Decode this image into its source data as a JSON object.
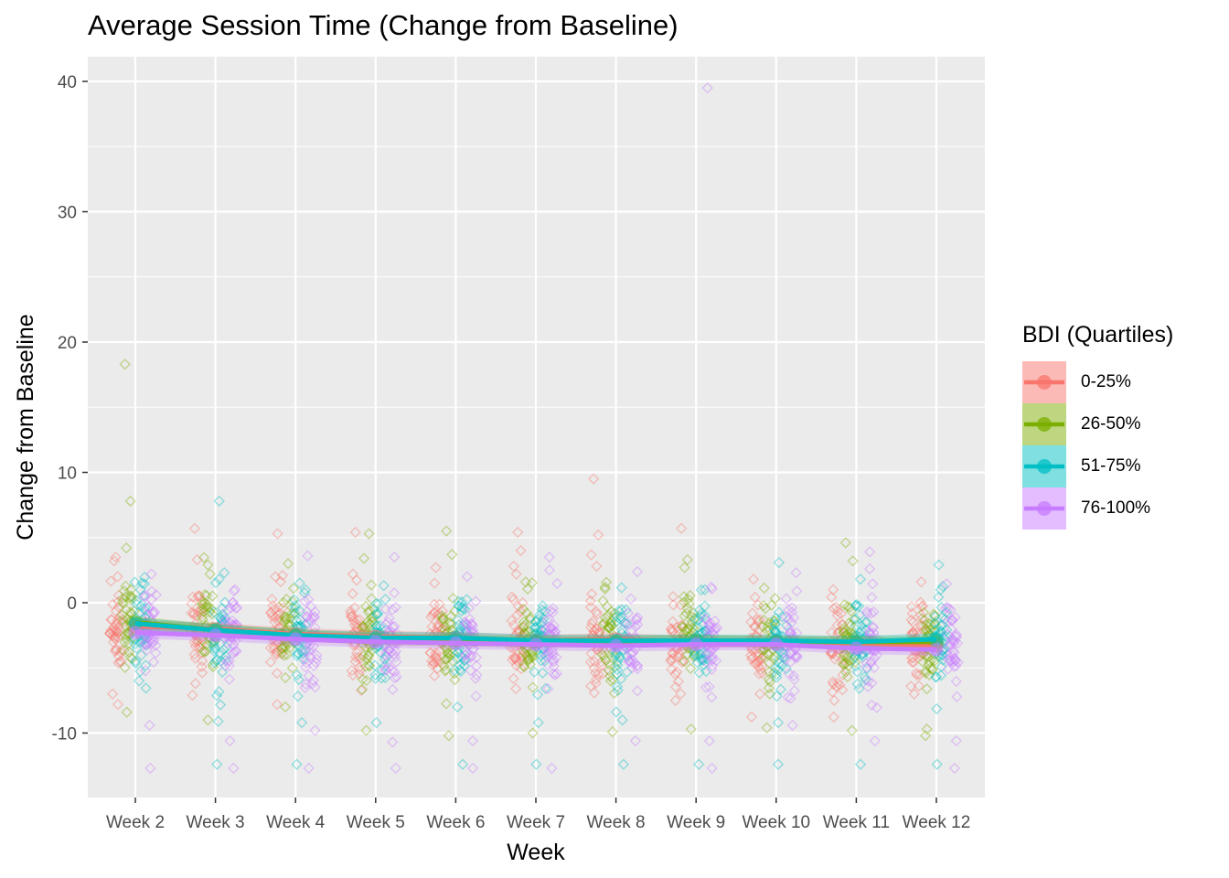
{
  "chart_data": {
    "type": "line",
    "title": "Average Session Time (Change from Baseline)",
    "xlabel": "Week",
    "ylabel": "Change from Baseline",
    "categories": [
      "Week 2",
      "Week 3",
      "Week 4",
      "Week 5",
      "Week 6",
      "Week 7",
      "Week 8",
      "Week 9",
      "Week 10",
      "Week 11",
      "Week 12"
    ],
    "yticks": [
      -10,
      0,
      10,
      20,
      30,
      40
    ],
    "ylim": [
      -15.2,
      41.8
    ],
    "grid": true,
    "legend": {
      "title": "BDI (Quartiles)",
      "position": "right"
    },
    "series": [
      {
        "name": "0-25%",
        "color": "#F8766D",
        "values": [
          -1.8,
          -2.0,
          -2.4,
          -2.6,
          -2.7,
          -2.9,
          -2.8,
          -3.0,
          -3.0,
          -3.1,
          -3.3
        ],
        "outliers": [
          [
            0,
            3.5
          ],
          [
            0,
            3.2
          ],
          [
            0,
            2.0
          ],
          [
            0,
            -7.0
          ],
          [
            0,
            -7.8
          ],
          [
            1,
            5.7
          ],
          [
            1,
            3.3
          ],
          [
            1,
            -6.2
          ],
          [
            1,
            -7.1
          ],
          [
            2,
            5.3
          ],
          [
            2,
            2.0
          ],
          [
            2,
            -7.8
          ],
          [
            3,
            5.4
          ],
          [
            3,
            2.2
          ],
          [
            4,
            2.7
          ],
          [
            4,
            1.5
          ],
          [
            5,
            5.4
          ],
          [
            5,
            4.0
          ],
          [
            5,
            2.8
          ],
          [
            6,
            9.5
          ],
          [
            6,
            5.2
          ],
          [
            6,
            2.8
          ],
          [
            7,
            5.7
          ],
          [
            7,
            -7.5
          ],
          [
            8,
            1.8
          ],
          [
            8,
            -7.0
          ],
          [
            9,
            1.0
          ],
          [
            9,
            -7.5
          ],
          [
            10,
            1.6
          ],
          [
            10,
            -7.0
          ]
        ]
      },
      {
        "name": "26-50%",
        "color": "#7CAE00",
        "values": [
          -1.5,
          -2.1,
          -2.5,
          -2.8,
          -2.9,
          -3.0,
          -3.0,
          -2.9,
          -3.0,
          -3.0,
          -3.0
        ],
        "outliers": [
          [
            0,
            18.3
          ],
          [
            0,
            7.8
          ],
          [
            0,
            4.2
          ],
          [
            0,
            -8.4
          ],
          [
            1,
            2.9
          ],
          [
            1,
            2.2
          ],
          [
            1,
            -9.0
          ],
          [
            2,
            3.0
          ],
          [
            2,
            -8.0
          ],
          [
            3,
            5.3
          ],
          [
            3,
            3.4
          ],
          [
            3,
            -9.8
          ],
          [
            4,
            5.5
          ],
          [
            4,
            3.7
          ],
          [
            4,
            -10.2
          ],
          [
            5,
            1.6
          ],
          [
            5,
            -10.0
          ],
          [
            6,
            1.2
          ],
          [
            6,
            -9.9
          ],
          [
            7,
            3.3
          ],
          [
            7,
            2.7
          ],
          [
            7,
            -9.7
          ],
          [
            8,
            -7.0
          ],
          [
            8,
            -9.6
          ],
          [
            9,
            4.6
          ],
          [
            9,
            3.2
          ],
          [
            9,
            -9.8
          ],
          [
            10,
            -9.7
          ],
          [
            10,
            -10.2
          ]
        ]
      },
      {
        "name": "51-75%",
        "color": "#00BFC4",
        "values": [
          -1.6,
          -2.1,
          -2.5,
          -2.7,
          -2.7,
          -2.9,
          -2.9,
          -2.9,
          -2.9,
          -3.0,
          -2.8
        ],
        "outliers": [
          [
            0,
            1.5
          ],
          [
            0,
            -6.0
          ],
          [
            1,
            7.8
          ],
          [
            1,
            2.3
          ],
          [
            1,
            -9.1
          ],
          [
            1,
            -12.4
          ],
          [
            2,
            -9.2
          ],
          [
            2,
            -12.4
          ],
          [
            3,
            -9.2
          ],
          [
            4,
            -8.0
          ],
          [
            4,
            -12.4
          ],
          [
            5,
            -9.2
          ],
          [
            5,
            -12.4
          ],
          [
            6,
            -9.0
          ],
          [
            6,
            -12.4
          ],
          [
            7,
            1.0
          ],
          [
            7,
            -12.4
          ],
          [
            8,
            -9.2
          ],
          [
            8,
            -12.4
          ],
          [
            9,
            1.8
          ],
          [
            9,
            -12.4
          ],
          [
            10,
            2.9
          ],
          [
            10,
            1.0
          ],
          [
            10,
            -12.4
          ]
        ]
      },
      {
        "name": "76-100%",
        "color": "#C77CFF",
        "values": [
          -2.3,
          -2.5,
          -2.8,
          -3.0,
          -3.1,
          -3.2,
          -3.3,
          -3.2,
          -3.2,
          -3.5,
          -3.6
        ],
        "outliers": [
          [
            0,
            2.2
          ],
          [
            0,
            -9.4
          ],
          [
            0,
            -12.7
          ],
          [
            1,
            1.0
          ],
          [
            1,
            -10.6
          ],
          [
            1,
            -12.7
          ],
          [
            2,
            3.6
          ],
          [
            2,
            -9.8
          ],
          [
            2,
            -12.7
          ],
          [
            3,
            3.5
          ],
          [
            3,
            -10.7
          ],
          [
            3,
            -12.7
          ],
          [
            4,
            2.0
          ],
          [
            4,
            -10.6
          ],
          [
            4,
            -12.7
          ],
          [
            5,
            3.5
          ],
          [
            5,
            2.5
          ],
          [
            5,
            -12.7
          ],
          [
            6,
            0.3
          ],
          [
            6,
            -10.6
          ],
          [
            7,
            39.5
          ],
          [
            7,
            1.2
          ],
          [
            7,
            -10.6
          ],
          [
            7,
            -12.7
          ],
          [
            8,
            2.3
          ],
          [
            8,
            -9.4
          ],
          [
            9,
            3.9
          ],
          [
            9,
            2.6
          ],
          [
            9,
            -10.6
          ],
          [
            10,
            -10.6
          ],
          [
            10,
            -12.7
          ]
        ]
      }
    ]
  }
}
